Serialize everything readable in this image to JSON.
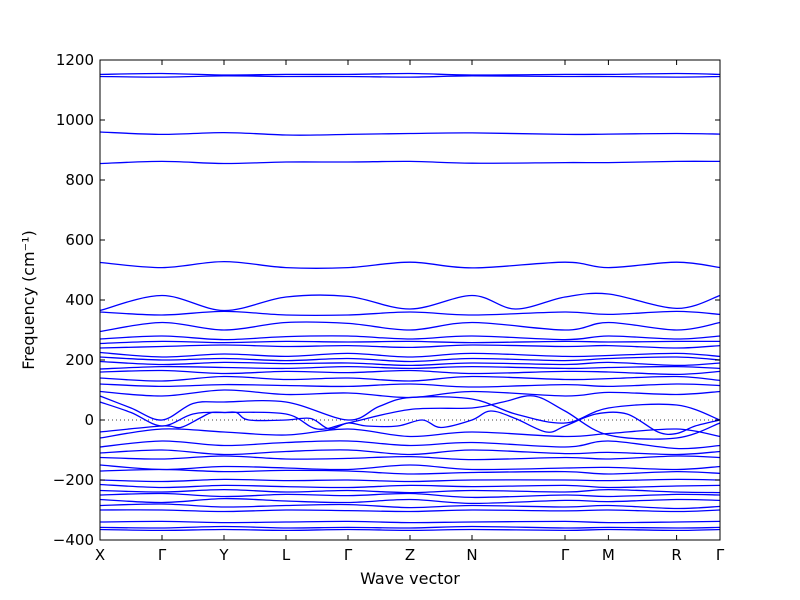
{
  "chart_data": {
    "type": "line",
    "title": "",
    "xlabel": "Wave vector",
    "ylabel": "Frequency (cm⁻¹)",
    "ylim": [
      -400,
      1200
    ],
    "yticks": [
      -400,
      -200,
      0,
      200,
      400,
      600,
      800,
      1000,
      1200
    ],
    "ytick_labels": [
      "−400",
      "−200",
      "0",
      "200",
      "400",
      "600",
      "800",
      "1000",
      "1200"
    ],
    "xlim": [
      0,
      10
    ],
    "x_ticks": [
      {
        "label": "X",
        "pos": 0
      },
      {
        "label": "Γ",
        "pos": 1
      },
      {
        "label": "Y",
        "pos": 2
      },
      {
        "label": "L",
        "pos": 3
      },
      {
        "label": "Γ",
        "pos": 4
      },
      {
        "label": "Z",
        "pos": 5
      },
      {
        "label": "N",
        "pos": 6
      },
      {
        "label": "Γ",
        "pos": 7.5
      },
      {
        "label": "M",
        "pos": 8.2
      },
      {
        "label": "R",
        "pos": 9.3
      },
      {
        "label": "Γ",
        "pos": 10
      }
    ],
    "zero_line": {
      "y": 0,
      "style": "dotted"
    },
    "line_color": "#0000ff",
    "grid": false,
    "series": [
      {
        "x": [
          0,
          1,
          2,
          3,
          4,
          5,
          6,
          7.5,
          8.2,
          9.3,
          10
        ],
        "values": [
          1152,
          1155,
          1150,
          1152,
          1152,
          1155,
          1150,
          1152,
          1152,
          1155,
          1152
        ]
      },
      {
        "x": [
          0,
          1,
          2,
          3,
          4,
          5,
          6,
          7.5,
          8.2,
          9.3,
          10
        ],
        "values": [
          1145,
          1143,
          1147,
          1145,
          1145,
          1143,
          1147,
          1145,
          1145,
          1143,
          1145
        ]
      },
      {
        "x": [
          0,
          1,
          2,
          3,
          3.5,
          4,
          5,
          6,
          7.5,
          8.2,
          9.3,
          10
        ],
        "values": [
          960,
          952,
          958,
          950,
          950,
          952,
          955,
          957,
          952,
          953,
          955,
          953
        ]
      },
      {
        "x": [
          0,
          1,
          2,
          3,
          4,
          5,
          6,
          7.5,
          8.2,
          9.3,
          10
        ],
        "values": [
          855,
          862,
          855,
          860,
          860,
          862,
          856,
          858,
          858,
          862,
          862
        ]
      },
      {
        "x": [
          0,
          1,
          2,
          3,
          4,
          5,
          6,
          7.5,
          8.2,
          9.3,
          10
        ],
        "values": [
          525,
          508,
          528,
          508,
          508,
          526,
          507,
          526,
          508,
          526,
          508
        ]
      },
      {
        "x": [
          0,
          1,
          2,
          3,
          4,
          5,
          6,
          6.7,
          7.5,
          8.2,
          9.3,
          10
        ],
        "values": [
          365,
          415,
          365,
          410,
          412,
          370,
          415,
          370,
          410,
          420,
          372,
          415
        ]
      },
      {
        "x": [
          0,
          1,
          2,
          3,
          4,
          5,
          6,
          7.5,
          8.2,
          9.3,
          10
        ],
        "values": [
          360,
          350,
          362,
          350,
          350,
          360,
          350,
          360,
          352,
          362,
          352
        ]
      },
      {
        "x": [
          0,
          1,
          2,
          3,
          4,
          5,
          6,
          7.5,
          8.2,
          9.3,
          10
        ],
        "values": [
          295,
          325,
          300,
          325,
          322,
          300,
          325,
          300,
          325,
          300,
          325
        ]
      },
      {
        "x": [
          0,
          1,
          2,
          3,
          4,
          5,
          6,
          7.5,
          8.2,
          9.3,
          10
        ],
        "values": [
          270,
          280,
          268,
          278,
          280,
          270,
          280,
          268,
          280,
          270,
          280
        ]
      },
      {
        "x": [
          0,
          1,
          2,
          3,
          4,
          5,
          6,
          7.5,
          8.2,
          9.3,
          10
        ],
        "values": [
          255,
          262,
          258,
          262,
          260,
          262,
          258,
          262,
          260,
          262,
          262
        ]
      },
      {
        "x": [
          0,
          1,
          2,
          3,
          4,
          5,
          6,
          7.5,
          8.2,
          9.3,
          10
        ],
        "values": [
          240,
          245,
          250,
          245,
          248,
          242,
          250,
          245,
          248,
          240,
          248
        ]
      },
      {
        "x": [
          0,
          1,
          2,
          3,
          4,
          5,
          6,
          7.5,
          8.2,
          9.3,
          10
        ],
        "values": [
          225,
          210,
          220,
          212,
          222,
          210,
          222,
          212,
          215,
          222,
          212
        ]
      },
      {
        "x": [
          0,
          1,
          2,
          3,
          4,
          5,
          6,
          7.5,
          8.2,
          9.3,
          10
        ],
        "values": [
          210,
          200,
          205,
          198,
          205,
          195,
          205,
          198,
          205,
          210,
          200
        ]
      },
      {
        "x": [
          0,
          1,
          2,
          3,
          4,
          5,
          6,
          7.5,
          8.2,
          9.3,
          10
        ],
        "values": [
          195,
          185,
          192,
          188,
          190,
          182,
          190,
          185,
          192,
          182,
          190
        ]
      },
      {
        "x": [
          0,
          1,
          2,
          3,
          4,
          5,
          6,
          7.5,
          8.2,
          9.3,
          10
        ],
        "values": [
          170,
          178,
          175,
          172,
          178,
          172,
          178,
          172,
          175,
          178,
          172
        ]
      },
      {
        "x": [
          0,
          1,
          2,
          3,
          4,
          5,
          6,
          7.5,
          8.2,
          9.3,
          10
        ],
        "values": [
          160,
          165,
          155,
          162,
          158,
          165,
          155,
          162,
          160,
          152,
          162
        ]
      },
      {
        "x": [
          0,
          1,
          2,
          3,
          4,
          5,
          6,
          7.5,
          8.2,
          9.3,
          10
        ],
        "values": [
          140,
          130,
          145,
          135,
          140,
          130,
          145,
          135,
          138,
          145,
          132
        ]
      },
      {
        "x": [
          0,
          1,
          2,
          3,
          4,
          5,
          6,
          7.5,
          8.2,
          9.3,
          10
        ],
        "values": [
          120,
          112,
          118,
          115,
          112,
          120,
          110,
          118,
          112,
          120,
          115
        ]
      },
      {
        "x": [
          0,
          1,
          2,
          3,
          4,
          5,
          6,
          7.5,
          8.2,
          9.3,
          10
        ],
        "values": [
          95,
          80,
          100,
          85,
          90,
          75,
          95,
          80,
          92,
          85,
          95
        ]
      },
      {
        "x": [
          0,
          0.5,
          1,
          1.5,
          2,
          3,
          4,
          4.5,
          5,
          6,
          6.7,
          7.5,
          8.2,
          9.3,
          10
        ],
        "values": [
          80,
          40,
          0,
          55,
          60,
          60,
          0,
          45,
          75,
          70,
          20,
          -10,
          40,
          50,
          0
        ]
      },
      {
        "x": [
          0,
          0.5,
          1,
          1.5,
          2,
          3,
          3.5,
          4,
          5,
          6,
          6.5,
          7,
          7.5,
          8.2,
          9.3,
          10
        ],
        "values": [
          60,
          25,
          -20,
          20,
          25,
          20,
          -30,
          -10,
          35,
          40,
          60,
          80,
          30,
          -50,
          -60,
          -10
        ]
      },
      {
        "x": [
          0,
          1,
          1.3,
          1.6,
          1.8,
          2,
          2.2,
          2.4,
          3,
          3.4,
          3.7,
          4,
          4.3,
          4.8,
          5.2,
          5.5,
          6,
          6.3,
          6.7,
          7.2,
          7.5,
          8,
          8.5,
          9,
          9.3,
          9.6,
          10
        ],
        "values": [
          -40,
          -20,
          -25,
          5,
          25,
          25,
          25,
          0,
          0,
          5,
          -30,
          -10,
          -20,
          -20,
          0,
          -25,
          0,
          30,
          5,
          -40,
          -20,
          20,
          20,
          -40,
          -45,
          -20,
          0
        ]
      },
      {
        "x": [
          0,
          1,
          2,
          3,
          4,
          5,
          6,
          7.5,
          8.2,
          9.3,
          10
        ],
        "values": [
          -60,
          -30,
          -40,
          -50,
          -30,
          -55,
          -40,
          -55,
          -45,
          -30,
          -55
        ]
      },
      {
        "x": [
          0,
          1,
          2,
          3,
          4,
          5,
          6,
          7.5,
          8.2,
          9.3,
          10
        ],
        "values": [
          -90,
          -70,
          -85,
          -75,
          -70,
          -85,
          -75,
          -90,
          -70,
          -95,
          -85
        ]
      },
      {
        "x": [
          0,
          1,
          2,
          3,
          4,
          5,
          6,
          7.5,
          8.2,
          9.3,
          10
        ],
        "values": [
          -110,
          -100,
          -115,
          -105,
          -100,
          -115,
          -100,
          -112,
          -108,
          -115,
          -105
        ]
      },
      {
        "x": [
          0,
          1,
          2,
          3,
          4,
          5,
          6,
          7.5,
          8.2,
          9.3,
          10
        ],
        "values": [
          -125,
          -130,
          -120,
          -130,
          -128,
          -122,
          -132,
          -125,
          -130,
          -120,
          -125
        ]
      },
      {
        "x": [
          0,
          1,
          2,
          3,
          4,
          5,
          6,
          7.5,
          8.2,
          9.3,
          10
        ],
        "values": [
          -150,
          -165,
          -155,
          -160,
          -165,
          -150,
          -165,
          -160,
          -158,
          -165,
          -155
        ]
      },
      {
        "x": [
          0,
          1,
          2,
          3,
          4,
          5,
          6,
          7.5,
          8.2,
          9.3,
          10
        ],
        "values": [
          -170,
          -165,
          -172,
          -168,
          -170,
          -180,
          -175,
          -172,
          -180,
          -172,
          -178
        ]
      },
      {
        "x": [
          0,
          1,
          2,
          3,
          4,
          5,
          6,
          7.5,
          8.2,
          9.3,
          10
        ],
        "values": [
          -200,
          -205,
          -198,
          -202,
          -200,
          -205,
          -200,
          -200,
          -202,
          -198,
          -200
        ]
      },
      {
        "x": [
          0,
          1,
          2,
          3,
          4,
          5,
          6,
          7.5,
          8.2,
          9.3,
          10
        ],
        "values": [
          -215,
          -225,
          -218,
          -222,
          -225,
          -218,
          -222,
          -218,
          -225,
          -220,
          -218
        ]
      },
      {
        "x": [
          0,
          1,
          2,
          3,
          4,
          5,
          6,
          7.5,
          8.2,
          9.3,
          10
        ],
        "values": [
          -235,
          -240,
          -232,
          -240,
          -235,
          -242,
          -235,
          -240,
          -232,
          -240,
          -242
        ]
      },
      {
        "x": [
          0,
          1,
          2,
          3,
          4,
          5,
          6,
          7.5,
          8.2,
          9.3,
          10
        ],
        "values": [
          -250,
          -245,
          -255,
          -248,
          -252,
          -245,
          -258,
          -250,
          -255,
          -248,
          -250
        ]
      },
      {
        "x": [
          0,
          1,
          2,
          3,
          4,
          5,
          6,
          7.5,
          8.2,
          9.3,
          10
        ],
        "values": [
          -265,
          -275,
          -262,
          -270,
          -275,
          -265,
          -278,
          -268,
          -272,
          -265,
          -268
        ]
      },
      {
        "x": [
          0,
          1,
          2,
          3,
          4,
          5,
          6,
          7.5,
          8.2,
          9.3,
          10
        ],
        "values": [
          -285,
          -280,
          -290,
          -285,
          -282,
          -292,
          -285,
          -290,
          -285,
          -295,
          -288
        ]
      },
      {
        "x": [
          0,
          1,
          2,
          3,
          4,
          5,
          6,
          7.5,
          8.2,
          9.3,
          10
        ],
        "values": [
          -300,
          -300,
          -305,
          -300,
          -302,
          -305,
          -300,
          -303,
          -300,
          -305,
          -300
        ]
      },
      {
        "x": [
          0,
          1,
          2,
          3,
          4,
          5,
          6,
          7.5,
          8.2,
          9.3,
          10
        ],
        "values": [
          -340,
          -338,
          -342,
          -340,
          -338,
          -342,
          -340,
          -338,
          -342,
          -340,
          -338
        ]
      },
      {
        "x": [
          0,
          1,
          2,
          3,
          4,
          5,
          6,
          7.5,
          8.2,
          9.3,
          10
        ],
        "values": [
          -358,
          -360,
          -355,
          -360,
          -358,
          -360,
          -355,
          -360,
          -358,
          -360,
          -358
        ]
      },
      {
        "x": [
          0,
          1,
          2,
          3,
          4,
          5,
          6,
          7.5,
          8.2,
          9.3,
          10
        ],
        "values": [
          -365,
          -368,
          -365,
          -368,
          -365,
          -368,
          -365,
          -368,
          -365,
          -368,
          -365
        ]
      }
    ]
  }
}
